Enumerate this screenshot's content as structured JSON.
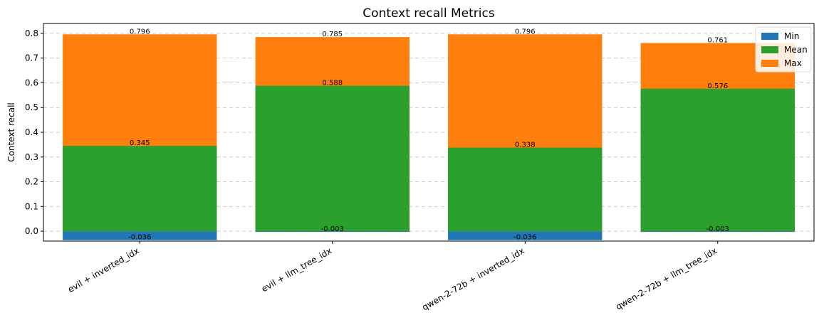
{
  "chart_data": {
    "type": "bar",
    "title": "Context recall Metrics",
    "xlabel": "",
    "ylabel": "Context recall",
    "ylim": [
      -0.04,
      0.84
    ],
    "yticks": [
      0.0,
      0.1,
      0.2,
      0.3,
      0.4,
      0.5,
      0.6,
      0.7,
      0.8
    ],
    "ytick_labels": [
      "0.0",
      "0.1",
      "0.2",
      "0.3",
      "0.4",
      "0.5",
      "0.6",
      "0.7",
      "0.8"
    ],
    "grid": "y-dashed",
    "legend_position": "top-right",
    "categories": [
      "evil + inverted_idx",
      "evil + llm_tree_idx",
      "qwen-2-72b + inverted_idx",
      "qwen-2-72b + llm_tree_idx"
    ],
    "series": [
      {
        "name": "Min",
        "color": "#1f77b4",
        "values": [
          -0.036,
          -0.003,
          -0.036,
          -0.003
        ],
        "labels": [
          "-0.036",
          "-0.003",
          "-0.036",
          "-0.003"
        ]
      },
      {
        "name": "Mean",
        "color": "#2ca02c",
        "values": [
          0.345,
          0.588,
          0.338,
          0.576
        ],
        "labels": [
          "0.345",
          "0.588",
          "0.338",
          "0.576"
        ]
      },
      {
        "name": "Max",
        "color": "#ff7f0e",
        "values": [
          0.796,
          0.785,
          0.796,
          0.761
        ],
        "labels": [
          "0.796",
          "0.785",
          "0.796",
          "0.761"
        ]
      }
    ]
  }
}
